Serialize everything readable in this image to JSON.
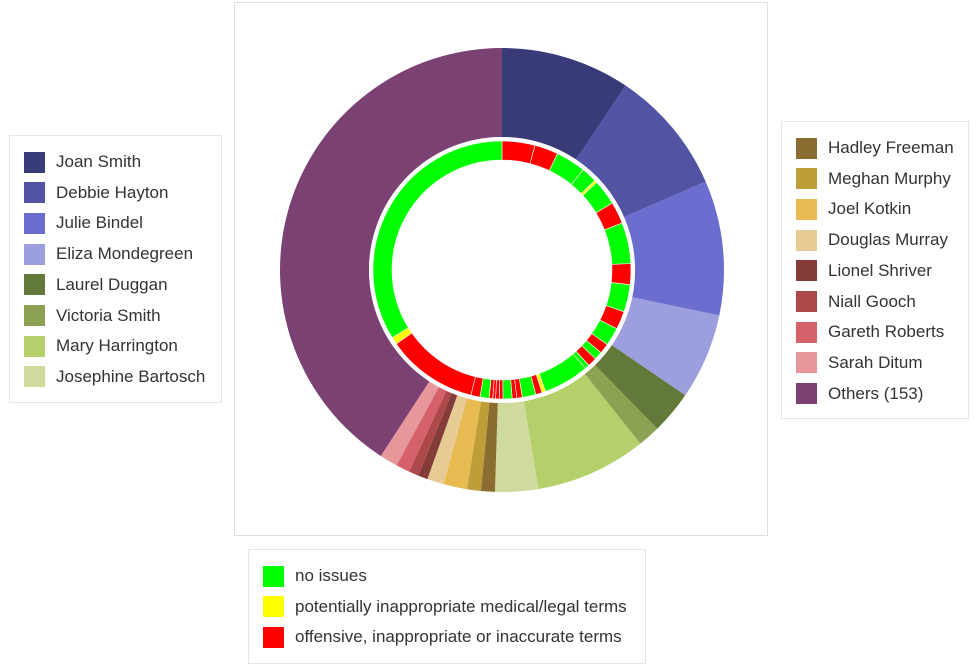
{
  "chart_data": {
    "type": "pie",
    "variant": "nested-donut",
    "series": [
      {
        "ring": "outer",
        "slices": [
          {
            "name": "Joan Smith",
            "value": 9.3,
            "color": "#393b79"
          },
          {
            "name": "Debbie Hayton",
            "value": 9.0,
            "color": "#5254a3"
          },
          {
            "name": "Julie Bindel",
            "value": 9.7,
            "color": "#6b6ecf"
          },
          {
            "name": "Eliza Mondegreen",
            "value": 6.2,
            "color": "#9c9ede"
          },
          {
            "name": "Laurel Duggan",
            "value": 3.1,
            "color": "#637939"
          },
          {
            "name": "Victoria Smith",
            "value": 1.6,
            "color": "#8ca252"
          },
          {
            "name": "Mary Harrington",
            "value": 8.0,
            "color": "#b5cf6b"
          },
          {
            "name": "Josephine Bartosch",
            "value": 3.1,
            "color": "#cedb9c"
          },
          {
            "name": "Hadley Freeman",
            "value": 1.0,
            "color": "#8c6d31"
          },
          {
            "name": "Meghan Murphy",
            "value": 1.0,
            "color": "#bd9e39"
          },
          {
            "name": "Joel Kotkin",
            "value": 1.7,
            "color": "#e7ba52"
          },
          {
            "name": "Douglas Murray",
            "value": 1.2,
            "color": "#e7cb94"
          },
          {
            "name": "Lionel Shriver",
            "value": 0.7,
            "color": "#843c39"
          },
          {
            "name": "Niall Gooch",
            "value": 0.7,
            "color": "#ad494a"
          },
          {
            "name": "Gareth Roberts",
            "value": 1.0,
            "color": "#d6616b"
          },
          {
            "name": "Sarah Ditum",
            "value": 1.3,
            "color": "#e7969c"
          },
          {
            "name": "Others (153)",
            "value": 40.4,
            "color": "#7b4173"
          }
        ]
      },
      {
        "ring": "inner",
        "slices": [
          {
            "cat": "bad",
            "value": 3.6
          },
          {
            "cat": "bad",
            "value": 2.6
          },
          {
            "cat": "ok",
            "value": 3.3
          },
          {
            "cat": "ok",
            "value": 1.7
          },
          {
            "cat": "med",
            "value": 0.3
          },
          {
            "cat": "ok",
            "value": 2.8
          },
          {
            "cat": "bad",
            "value": 2.4
          },
          {
            "cat": "ok",
            "value": 4.5
          },
          {
            "cat": "bad",
            "value": 2.3
          },
          {
            "cat": "ok",
            "value": 3.0
          },
          {
            "cat": "bad",
            "value": 2.0
          },
          {
            "cat": "ok",
            "value": 2.0
          },
          {
            "cat": "bad",
            "value": 1.1
          },
          {
            "cat": "ok",
            "value": 0.9
          },
          {
            "cat": "bad",
            "value": 1.0
          },
          {
            "cat": "ok",
            "value": 0.5
          },
          {
            "cat": "ok",
            "value": 5.0
          },
          {
            "cat": "med",
            "value": 0.4
          },
          {
            "cat": "bad",
            "value": 0.7
          },
          {
            "cat": "ok",
            "value": 1.5
          },
          {
            "cat": "bad",
            "value": 0.6
          },
          {
            "cat": "bad",
            "value": 0.5
          },
          {
            "cat": "ok",
            "value": 1.0
          },
          {
            "cat": "bad",
            "value": 0.4
          },
          {
            "cat": "bad",
            "value": 0.4
          },
          {
            "cat": "bad",
            "value": 0.3
          },
          {
            "cat": "bad",
            "value": 0.4
          },
          {
            "cat": "ok",
            "value": 1.0
          },
          {
            "cat": "bad",
            "value": 1.0
          },
          {
            "cat": "bad",
            "value": 10.0
          },
          {
            "cat": "med",
            "value": 0.8
          },
          {
            "cat": "ok",
            "value": 29.6
          }
        ]
      }
    ],
    "legend_left": [
      {
        "name": "Joan Smith",
        "color": "#393b79"
      },
      {
        "name": "Debbie Hayton",
        "color": "#5254a3"
      },
      {
        "name": "Julie Bindel",
        "color": "#6b6ecf"
      },
      {
        "name": "Eliza Mondegreen",
        "color": "#9c9ede"
      },
      {
        "name": "Laurel Duggan",
        "color": "#637939"
      },
      {
        "name": "Victoria Smith",
        "color": "#8ca252"
      },
      {
        "name": "Mary Harrington",
        "color": "#b5cf6b"
      },
      {
        "name": "Josephine Bartosch",
        "color": "#cedb9c"
      }
    ],
    "legend_right": [
      {
        "name": "Hadley Freeman",
        "color": "#8c6d31"
      },
      {
        "name": "Meghan Murphy",
        "color": "#bd9e39"
      },
      {
        "name": "Joel Kotkin",
        "color": "#e7ba52"
      },
      {
        "name": "Douglas Murray",
        "color": "#e7cb94"
      },
      {
        "name": "Lionel Shriver",
        "color": "#843c39"
      },
      {
        "name": "Niall Gooch",
        "color": "#ad494a"
      },
      {
        "name": "Gareth Roberts",
        "color": "#d6616b"
      },
      {
        "name": "Sarah Ditum",
        "color": "#e7969c"
      },
      {
        "name": "Others (153)",
        "color": "#7b4173"
      }
    ],
    "legend_bottom": [
      {
        "key": "ok",
        "name": "no issues",
        "color": "#00ff00"
      },
      {
        "key": "med",
        "name": "potentially inappropriate medical/legal terms",
        "color": "#ffff00"
      },
      {
        "key": "bad",
        "name": "offensive, inappropriate or inaccurate terms",
        "color": "#ff0000"
      }
    ],
    "legend_placement": {
      "authors_left": "left",
      "authors_right": "right",
      "categories": "bottom"
    }
  }
}
